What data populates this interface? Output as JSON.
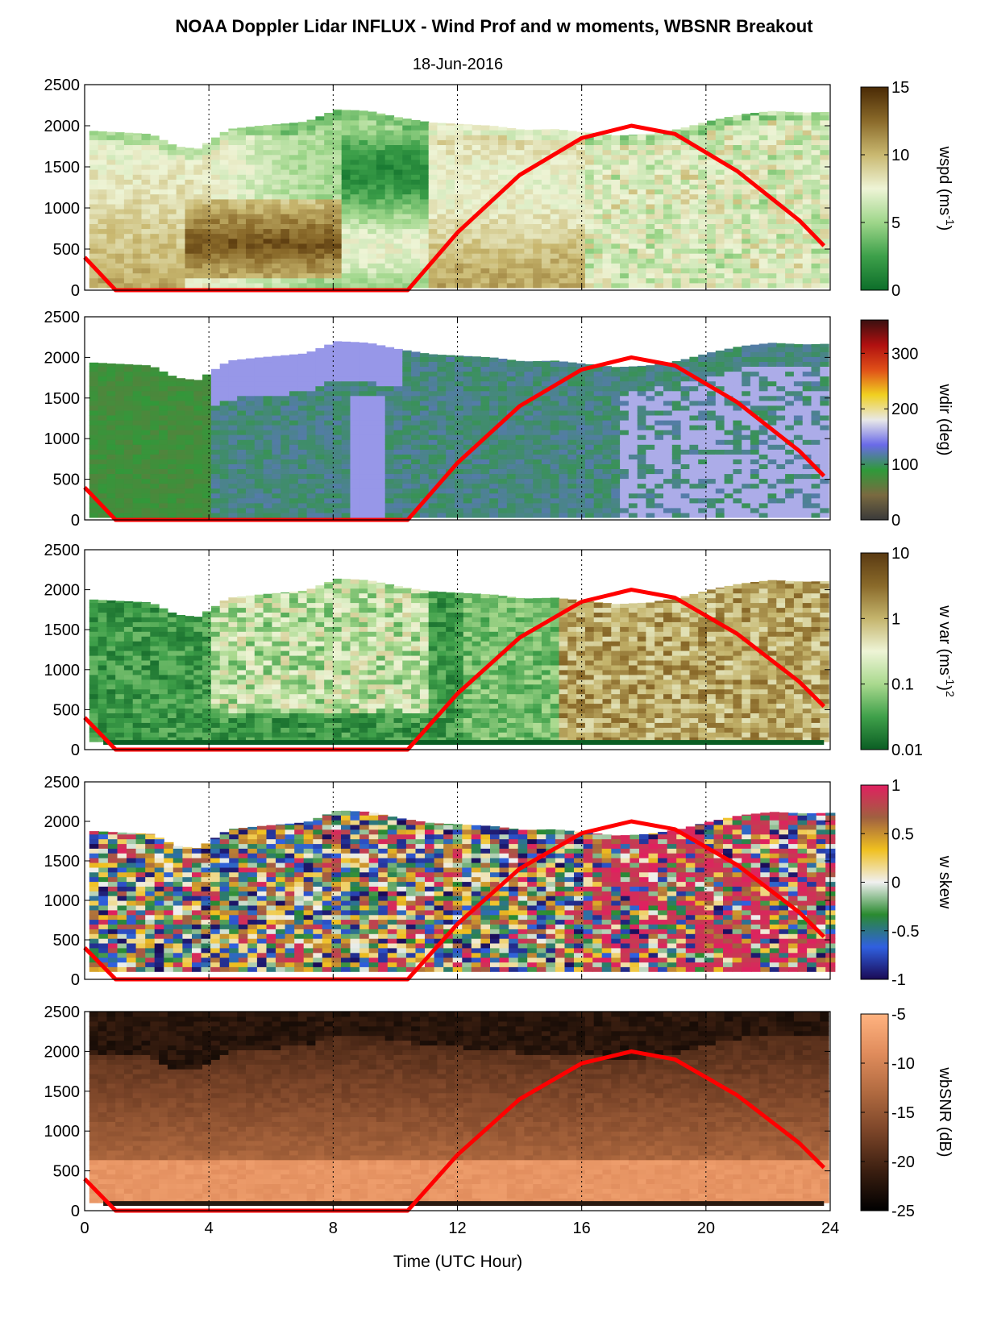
{
  "figure": {
    "title": "NOAA Doppler Lidar INFLUX - Wind Prof and w moments, WBSNR Breakout",
    "subtitle": "18-Jun-2016",
    "xlabel": "Time (UTC Hour)",
    "xticks": [
      "0",
      "4",
      "8",
      "12",
      "16",
      "20",
      "24"
    ],
    "yticks": [
      "0",
      "500",
      "1000",
      "1500",
      "2000",
      "2500"
    ]
  },
  "chart_data": [
    {
      "type": "heatmap",
      "id": "wspd",
      "cbar_label": "wspd (ms",
      "cbar_sup": "-1",
      "cbar_tail": ")",
      "cbar_ticks": [
        "0",
        "5",
        "10",
        "15"
      ],
      "cbar_range": [
        0,
        15
      ],
      "xlim": [
        0,
        24
      ],
      "ylim": [
        0,
        2500
      ],
      "colors": {
        "low": "#1e7a32",
        "mid": "#eef4d6",
        "high": "#5a3a12"
      }
    },
    {
      "type": "heatmap",
      "id": "wdir",
      "cbar_label": "wdir (deg)",
      "cbar_ticks": [
        "0",
        "100",
        "200",
        "300"
      ],
      "cbar_range": [
        0,
        360
      ],
      "xlim": [
        0,
        24
      ],
      "ylim": [
        0,
        2500
      ],
      "colors": {
        "low": "#3a3a3a",
        "mid": "#7f7fe0",
        "high": "#b01818"
      }
    },
    {
      "type": "heatmap",
      "id": "wvar",
      "cbar_label": "w var (ms",
      "cbar_sup": "-1",
      "cbar_tail": ")",
      "cbar_sup2": "2",
      "cbar_ticks": [
        "0.01",
        "0.1",
        "1",
        "10"
      ],
      "cbar_scale": "log",
      "cbar_range": [
        0.01,
        10
      ],
      "xlim": [
        0,
        24
      ],
      "ylim": [
        0,
        2500
      ],
      "colors": {
        "low": "#0f6a28",
        "mid": "#eef4d6",
        "high": "#5a3a12"
      }
    },
    {
      "type": "heatmap",
      "id": "wskew",
      "cbar_label": "w skew",
      "cbar_ticks": [
        "-1",
        "-0.5",
        "0",
        "0.5",
        "1"
      ],
      "cbar_range": [
        -1,
        1
      ],
      "xlim": [
        0,
        24
      ],
      "ylim": [
        0,
        2500
      ],
      "colors": {
        "low": "#1a0a55",
        "mid": "#f2f2f2",
        "high": "#e02060"
      }
    },
    {
      "type": "heatmap",
      "id": "wbsnr",
      "cbar_label": "wbSNR (dB)",
      "cbar_ticks": [
        "-25",
        "-20",
        "-15",
        "-10",
        "-5"
      ],
      "cbar_range": [
        -25,
        -5
      ],
      "xlim": [
        0,
        24
      ],
      "ylim": [
        0,
        2500
      ],
      "colors": {
        "low": "#000000",
        "mid": "#b06a40",
        "high": "#ffb380"
      }
    }
  ],
  "overlay_line": {
    "color": "#ff0000",
    "x": [
      0,
      1.0,
      10.4,
      12,
      14,
      16,
      17.6,
      19,
      21,
      23,
      23.8
    ],
    "y": [
      400,
      0,
      0,
      700,
      1400,
      1850,
      2000,
      1900,
      1450,
      850,
      540
    ]
  },
  "wspd_top": {
    "x": [
      0,
      2,
      2.8,
      3.5,
      4.5,
      5.5,
      7,
      8,
      9,
      10,
      11,
      12,
      13,
      14,
      15,
      16,
      17,
      18,
      19,
      20,
      21,
      22,
      23,
      24
    ],
    "y": [
      1940,
      1900,
      1750,
      1720,
      1960,
      2000,
      2050,
      2200,
      2180,
      2100,
      2040,
      2020,
      2000,
      1950,
      1960,
      1920,
      1880,
      1900,
      1960,
      2060,
      2140,
      2180,
      2160,
      2170
    ]
  }
}
